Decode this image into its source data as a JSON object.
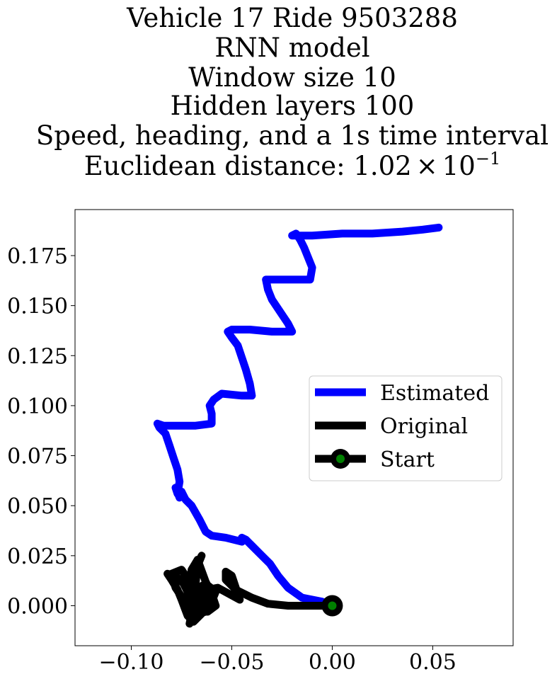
{
  "chart_data": {
    "type": "line",
    "title_lines": [
      "Vehicle 17 Ride 9503288",
      "RNN model",
      "Window size 10",
      "Hidden layers 100",
      "Speed, heading, and a 1s time interval"
    ],
    "title_metric": {
      "prefix": "Euclidean distance: ",
      "mantissa": "1.02",
      "times": "×",
      "base": "10",
      "exponent": "−1"
    },
    "xlabel": "",
    "ylabel": "",
    "xlim": [
      -0.128,
      0.09
    ],
    "ylim": [
      -0.02,
      0.198
    ],
    "xticks": [
      -0.1,
      -0.05,
      0.0,
      0.05
    ],
    "xtick_labels": [
      "−0.10",
      "−0.05",
      "0.00",
      "0.05"
    ],
    "yticks": [
      0.0,
      0.025,
      0.05,
      0.075,
      0.1,
      0.125,
      0.15,
      0.175
    ],
    "ytick_labels": [
      "0.000",
      "0.025",
      "0.050",
      "0.075",
      "0.100",
      "0.125",
      "0.150",
      "0.175"
    ],
    "grid": false,
    "legend_position": "center-right",
    "series": [
      {
        "name": "Estimated",
        "color": "#0000ff",
        "x": [
          0.0,
          -0.005,
          -0.015,
          -0.022,
          -0.027,
          -0.031,
          -0.036,
          -0.04,
          -0.043,
          -0.045,
          -0.045,
          -0.053,
          -0.06,
          -0.063,
          -0.066,
          -0.07,
          -0.073,
          -0.075,
          -0.076,
          -0.078,
          -0.077,
          -0.076,
          -0.077,
          -0.079,
          -0.081,
          -0.083,
          -0.086,
          -0.087,
          -0.084,
          -0.077,
          -0.068,
          -0.06,
          -0.06,
          -0.061,
          -0.059,
          -0.055,
          -0.045,
          -0.04,
          -0.041,
          -0.043,
          -0.045,
          -0.047,
          -0.05,
          -0.052,
          -0.05,
          -0.041,
          -0.03,
          -0.02,
          -0.022,
          -0.026,
          -0.03,
          -0.032,
          -0.033,
          -0.03,
          -0.02,
          -0.011,
          -0.01,
          -0.012,
          -0.014,
          -0.016,
          -0.018,
          -0.02,
          -0.018,
          -0.01,
          0.005,
          0.02,
          0.035,
          0.045,
          0.053
        ],
        "y": [
          0.0,
          0.002,
          0.004,
          0.009,
          0.015,
          0.021,
          0.026,
          0.03,
          0.033,
          0.034,
          0.032,
          0.034,
          0.035,
          0.037,
          0.043,
          0.05,
          0.053,
          0.057,
          0.054,
          0.059,
          0.056,
          0.062,
          0.068,
          0.074,
          0.08,
          0.086,
          0.089,
          0.091,
          0.09,
          0.09,
          0.09,
          0.091,
          0.096,
          0.1,
          0.103,
          0.106,
          0.105,
          0.105,
          0.111,
          0.118,
          0.124,
          0.13,
          0.134,
          0.137,
          0.138,
          0.138,
          0.137,
          0.137,
          0.141,
          0.147,
          0.153,
          0.158,
          0.163,
          0.163,
          0.163,
          0.163,
          0.169,
          0.174,
          0.179,
          0.183,
          0.186,
          0.185,
          0.185,
          0.185,
          0.186,
          0.186,
          0.187,
          0.188,
          0.189
        ]
      },
      {
        "name": "Original",
        "color": "#000000",
        "x": [
          0.0,
          -0.01,
          -0.022,
          -0.032,
          -0.04,
          -0.048,
          -0.053,
          -0.053,
          -0.05,
          -0.046,
          -0.057,
          -0.062,
          -0.064,
          -0.066,
          -0.068,
          -0.07,
          -0.071,
          -0.07,
          -0.067,
          -0.063,
          -0.06,
          -0.058,
          -0.062,
          -0.066,
          -0.068,
          -0.067,
          -0.065,
          -0.071,
          -0.075,
          -0.08,
          -0.078,
          -0.074,
          -0.072,
          -0.07,
          -0.072,
          -0.075,
          -0.077,
          -0.08,
          -0.082,
          -0.078,
          -0.074,
          -0.071,
          -0.069,
          -0.067,
          -0.063,
          -0.06,
          -0.058,
          -0.063,
          -0.068,
          -0.071,
          -0.071,
          -0.069,
          -0.064,
          -0.061,
          -0.06,
          -0.064,
          -0.068,
          -0.07,
          -0.071
        ],
        "y": [
          0.0,
          0.0,
          0.0,
          0.001,
          0.004,
          0.008,
          0.013,
          0.017,
          0.015,
          0.003,
          0.009,
          0.008,
          0.003,
          -0.002,
          -0.005,
          0.001,
          0.01,
          0.018,
          0.023,
          0.012,
          0.006,
          0.0,
          -0.003,
          0.004,
          0.011,
          0.02,
          0.025,
          0.012,
          0.018,
          0.016,
          0.009,
          0.003,
          0.0,
          -0.007,
          -0.005,
          0.003,
          0.008,
          0.013,
          0.016,
          0.015,
          0.011,
          0.005,
          0.0,
          -0.004,
          -0.003,
          0.002,
          0.007,
          0.011,
          0.008,
          0.004,
          -0.002,
          -0.008,
          -0.003,
          0.003,
          0.008,
          0.01,
          0.004,
          -0.004,
          -0.009
        ]
      },
      {
        "name": "Start",
        "color": "#000000",
        "marker_face": "#008000",
        "x": [
          0.0
        ],
        "y": [
          0.0
        ]
      }
    ]
  }
}
